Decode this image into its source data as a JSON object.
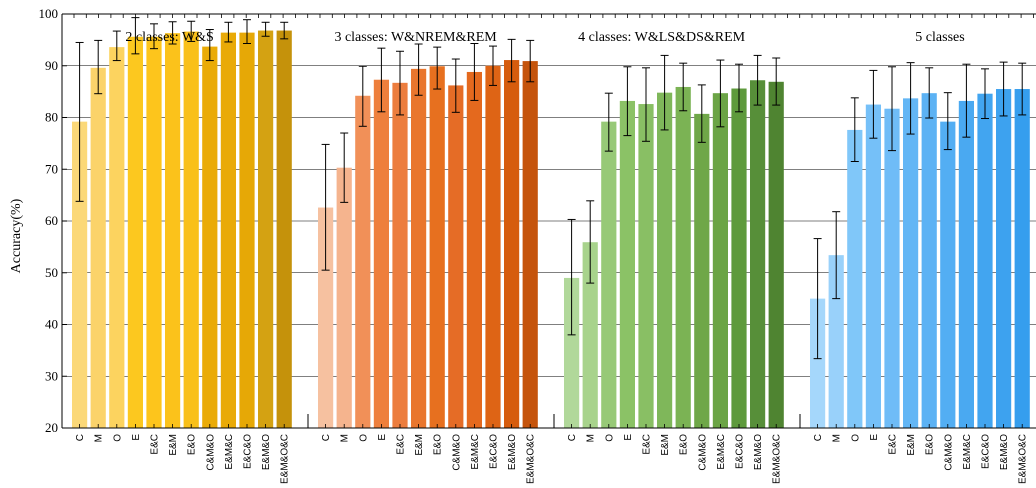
{
  "chart_data": {
    "type": "bar",
    "ylabel": "Accuracy(%)",
    "xlabel": "",
    "ylim": [
      20,
      100
    ],
    "yticks": [
      20,
      30,
      40,
      50,
      60,
      70,
      80,
      90,
      100
    ],
    "grid": "horizontal",
    "error_bars": true,
    "categories": [
      "C",
      "M",
      "O",
      "E",
      "E&C",
      "E&M",
      "E&O",
      "C&M&O",
      "E&M&C",
      "E&C&O",
      "E&M&O",
      "E&M&O&C"
    ],
    "groups": [
      {
        "title": "2 classes: W&S",
        "colors": [
          "#fbd878",
          "#fbd36a",
          "#fcd35f",
          "#fcc81f",
          "#fdc51c",
          "#fbc21b",
          "#f9c019",
          "#eaab07",
          "#e9aa07",
          "#e6a806",
          "#d4a212",
          "#c5920b"
        ],
        "values": [
          79.2,
          89.6,
          93.6,
          95.6,
          95.6,
          96.3,
          96.6,
          93.7,
          96.4,
          96.4,
          96.8,
          96.8
        ],
        "err_low": [
          63.8,
          84.6,
          91.0,
          92.3,
          93.3,
          94.2,
          94.7,
          91.0,
          94.6,
          94.3,
          95.7,
          95.2
        ],
        "err_high": [
          94.5,
          94.9,
          96.7,
          99.3,
          98.1,
          98.5,
          98.6,
          97.0,
          98.4,
          98.9,
          98.4,
          98.4
        ]
      },
      {
        "title": "3 classes: W&NREM&REM",
        "colors": [
          "#f6c1a0",
          "#f5b48e",
          "#f19058",
          "#ee7f3c",
          "#ec7d3e",
          "#e9762d",
          "#e7701f",
          "#e56c26",
          "#e4691e",
          "#de6415",
          "#d65c0d",
          "#c5540c"
        ],
        "values": [
          62.6,
          70.3,
          84.2,
          87.3,
          86.7,
          89.4,
          89.9,
          86.2,
          88.8,
          90.0,
          91.1,
          90.9
        ],
        "err_low": [
          50.5,
          63.6,
          78.3,
          81.1,
          80.5,
          84.3,
          85.5,
          81.0,
          83.3,
          86.2,
          86.9,
          86.9
        ],
        "err_high": [
          74.8,
          77.0,
          89.9,
          93.4,
          92.8,
          94.2,
          93.6,
          91.3,
          94.3,
          93.8,
          95.1,
          94.9
        ]
      },
      {
        "title": "4 classes: W&LS&DS&REM",
        "colors": [
          "#b1d89a",
          "#a8d38c",
          "#97c977",
          "#8bc266",
          "#89bf64",
          "#7fb75a",
          "#7bb354",
          "#6fa748",
          "#6ba445",
          "#5e9a3c",
          "#578f39",
          "#4f8431"
        ],
        "values": [
          49.0,
          55.9,
          79.2,
          83.2,
          82.6,
          84.8,
          85.9,
          80.7,
          84.7,
          85.6,
          87.2,
          86.9
        ],
        "err_low": [
          38.0,
          48.0,
          73.5,
          76.5,
          75.4,
          77.6,
          81.3,
          75.2,
          78.2,
          81.1,
          82.4,
          82.4
        ],
        "err_high": [
          60.3,
          63.9,
          84.7,
          89.8,
          89.6,
          92.0,
          90.5,
          86.3,
          91.1,
          90.3,
          92.0,
          91.5
        ]
      },
      {
        "title": "5 classes",
        "colors": [
          "#a5d7fb",
          "#99d1fa",
          "#80c7f9",
          "#75c0f8",
          "#6fbcf7",
          "#63b6f5",
          "#5cb2f4",
          "#53aef3",
          "#4aa9f1",
          "#42a5f0",
          "#3da2ef",
          "#359eee"
        ],
        "values": [
          45.0,
          53.4,
          77.6,
          82.5,
          81.7,
          83.7,
          84.7,
          79.2,
          83.2,
          84.6,
          85.5,
          85.5
        ],
        "err_low": [
          33.4,
          45.0,
          71.5,
          76.0,
          73.6,
          76.8,
          79.9,
          73.8,
          76.2,
          79.8,
          80.3,
          80.5
        ],
        "err_high": [
          56.6,
          61.8,
          83.8,
          89.1,
          89.8,
          90.6,
          89.6,
          84.8,
          90.3,
          89.4,
          90.7,
          90.5
        ]
      }
    ]
  }
}
